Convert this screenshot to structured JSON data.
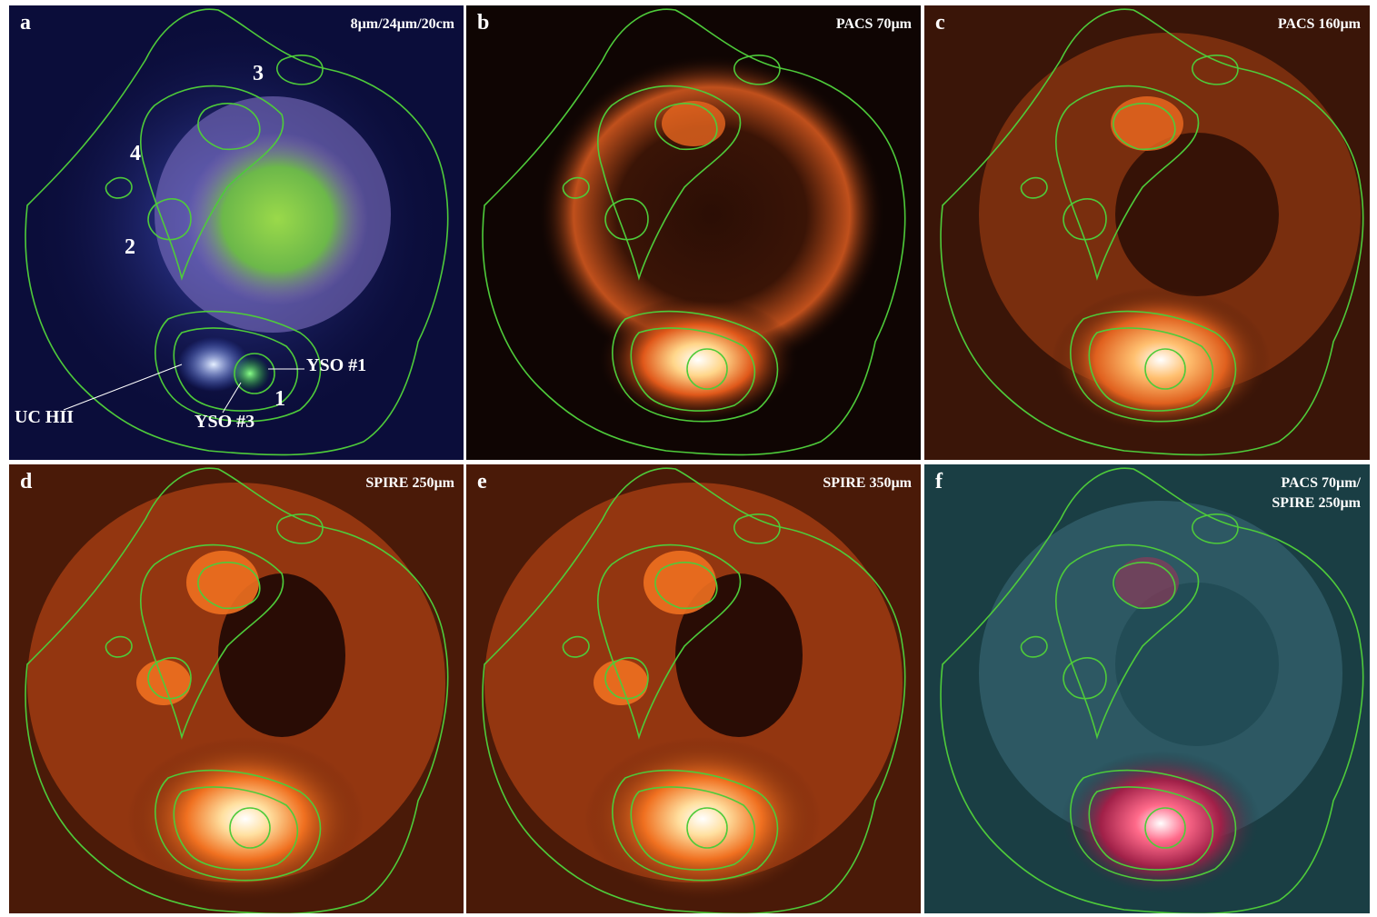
{
  "panels": [
    {
      "id": "a",
      "label": "a",
      "title": "8µm/24µm/20cm",
      "title2": "",
      "colormap": "rgb"
    },
    {
      "id": "b",
      "label": "b",
      "title": "PACS 70µm",
      "title2": "",
      "colormap": "heat"
    },
    {
      "id": "c",
      "label": "c",
      "title": "PACS 160µm",
      "title2": "",
      "colormap": "heat"
    },
    {
      "id": "d",
      "label": "d",
      "title": "SPIRE 250µm",
      "title2": "",
      "colormap": "heat"
    },
    {
      "id": "e",
      "label": "e",
      "title": "SPIRE 350µm",
      "title2": "",
      "colormap": "heat"
    },
    {
      "id": "f",
      "label": "f",
      "title": "PACS 70µm/",
      "title2": "SPIRE 250µm",
      "colormap": "teal-red"
    }
  ],
  "annotations": {
    "clump3": "3",
    "clump4": "4",
    "clump2": "2",
    "clump1": "1",
    "yso1": "YSO #1",
    "yso3": "YSO #3",
    "uchii": "UC HII"
  },
  "colors": {
    "contour": "#4ecb3a",
    "background": "#ffffff",
    "text": "#ffffff"
  }
}
